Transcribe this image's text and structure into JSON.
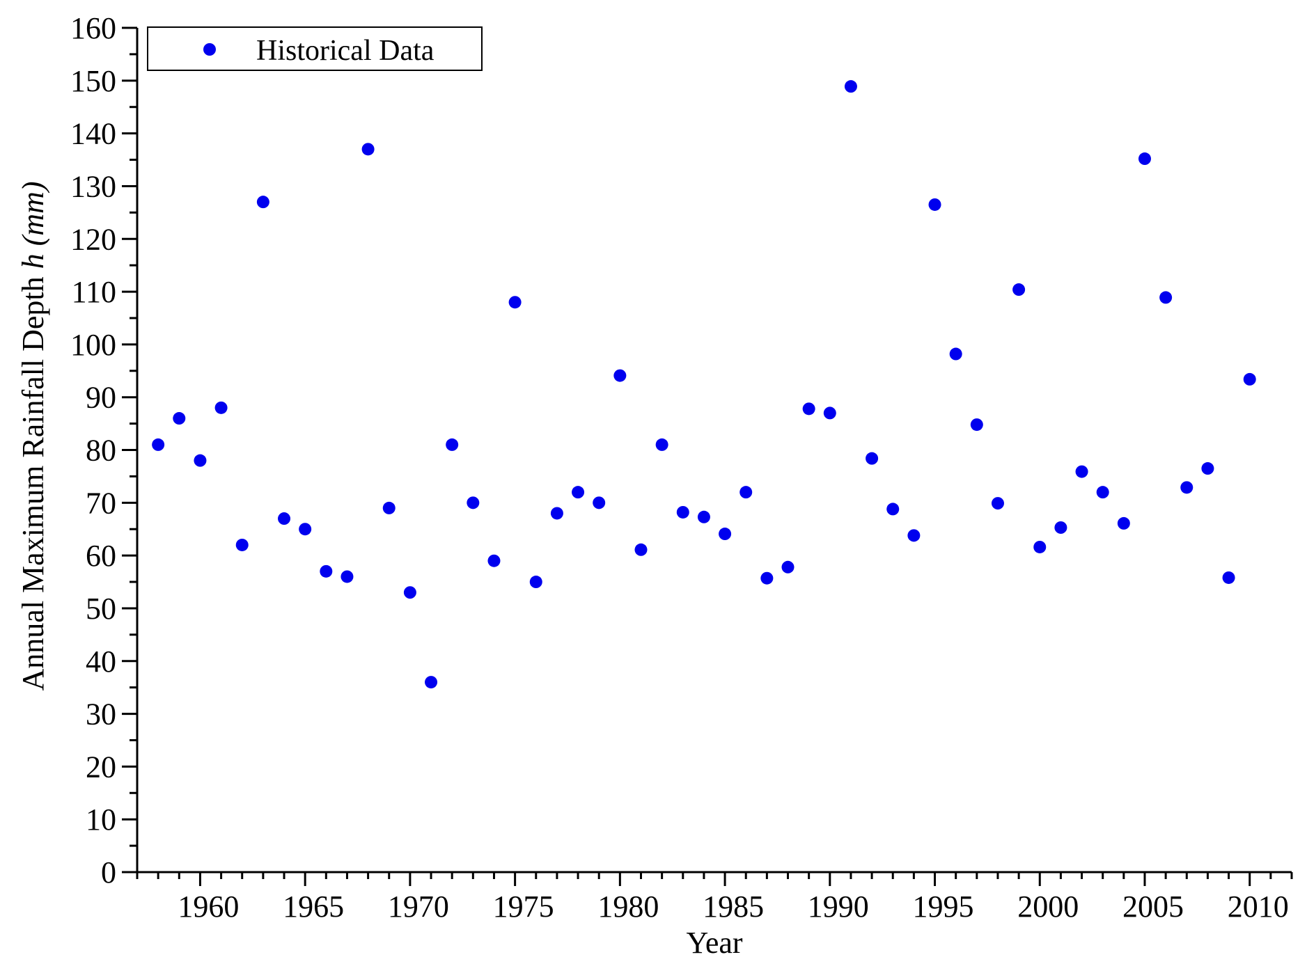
{
  "chart_data": {
    "type": "scatter",
    "xlabel": "Year",
    "ylabel_prefix": "Annual Maximum Rainfall Depth ",
    "ylabel_var": "h",
    "ylabel_unit": " (mm)",
    "xlim": [
      1957,
      2012
    ],
    "ylim": [
      0,
      160
    ],
    "x_ticks": [
      1960,
      1965,
      1970,
      1975,
      1980,
      1985,
      1990,
      1995,
      2000,
      2005,
      2010
    ],
    "y_ticks": [
      0,
      10,
      20,
      30,
      40,
      50,
      60,
      70,
      80,
      90,
      100,
      110,
      120,
      130,
      140,
      150,
      160
    ],
    "grid": false,
    "legend_position": "top-left",
    "series": [
      {
        "name": "Historical Data",
        "color": "#0000ee",
        "marker": "circle",
        "x": [
          1958,
          1959,
          1960,
          1961,
          1962,
          1963,
          1964,
          1965,
          1966,
          1967,
          1968,
          1969,
          1970,
          1971,
          1972,
          1973,
          1974,
          1975,
          1976,
          1977,
          1978,
          1979,
          1980,
          1981,
          1982,
          1983,
          1984,
          1985,
          1986,
          1987,
          1988,
          1989,
          1990,
          1991,
          1992,
          1993,
          1994,
          1995,
          1996,
          1997,
          1998,
          1999,
          2000,
          2001,
          2002,
          2003,
          2004,
          2005,
          2006,
          2007,
          2008,
          2009,
          2010
        ],
        "y": [
          81,
          86,
          78,
          88,
          62,
          127,
          67,
          65,
          57,
          56,
          137,
          69,
          53,
          36,
          81,
          70,
          59,
          108,
          55,
          68,
          72,
          70,
          94.1,
          61.1,
          81,
          68.2,
          67.3,
          64.1,
          72,
          55.7,
          57.8,
          87.8,
          87,
          148.9,
          78.4,
          68.8,
          63.8,
          126.5,
          98.2,
          84.8,
          69.9,
          110.4,
          61.6,
          65.3,
          75.9,
          72,
          66.1,
          135.2,
          108.9,
          72.9,
          76.5,
          55.8,
          93.4
        ]
      }
    ]
  }
}
